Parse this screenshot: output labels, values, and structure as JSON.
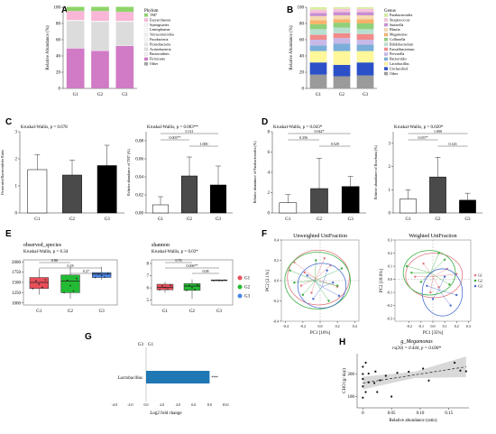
{
  "panel_letters": [
    "A",
    "B",
    "C",
    "D",
    "E",
    "F",
    "G",
    "H"
  ],
  "colors": {
    "groups": {
      "G1": "#e07a80",
      "G2": "#3cb043",
      "G3": "#4a6fd1"
    },
    "boxes": {
      "G1": "#e8505a",
      "G2": "#22bb33",
      "G3": "#4a86e8"
    }
  },
  "chart_data": [
    {
      "id": "A",
      "type": "bar",
      "stacked": true,
      "ylabel": "Relative Abundance (%)",
      "ylim": [
        0,
        100
      ],
      "yticks": [
        "0",
        "20",
        "40",
        "60",
        "80",
        "100"
      ],
      "categories": [
        "G1",
        "G2",
        "G3"
      ],
      "legend_title": "Phylum",
      "series": [
        {
          "name": "Other",
          "color": "#a0a0a0",
          "values": [
            0.3,
            0.3,
            0.3
          ]
        },
        {
          "name": "Firmicutes",
          "color": "#d17ac6",
          "values": [
            49,
            46,
            52
          ]
        },
        {
          "name": "Bacteroidetes",
          "color": "#f1f1f1",
          "values": [
            0.5,
            0.5,
            0.5
          ]
        },
        {
          "name": "Actinobacteria",
          "color": "#dcdcdc",
          "values": [
            33,
            35,
            29
          ]
        },
        {
          "name": "Proteobacteria",
          "color": "#e8e8e8",
          "values": [
            0.5,
            0.5,
            0.5
          ]
        },
        {
          "name": "Fusobacteria",
          "color": "#f5f5f5",
          "values": [
            0.3,
            0.3,
            0.3
          ]
        },
        {
          "name": "Verrucomicrobia",
          "color": "#f0f0f0",
          "values": [
            0.3,
            0.3,
            0.3
          ]
        },
        {
          "name": "Lentisphaerae",
          "color": "#fbfbfb",
          "values": [
            0.2,
            0.2,
            0.2
          ]
        },
        {
          "name": "Synergistetes",
          "color": "#f3f3f3",
          "values": [
            0.2,
            0.2,
            0.2
          ]
        },
        {
          "name": "Euryarchaeota",
          "color": "#f9b6d6",
          "values": [
            11,
            12,
            11
          ]
        },
        {
          "name": "TM7",
          "color": "#8ed46a",
          "values": [
            5.2,
            5.2,
            6.2
          ]
        }
      ]
    },
    {
      "id": "B",
      "type": "bar",
      "stacked": true,
      "ylabel": "Relative Abundance (%)",
      "ylim": [
        0,
        100
      ],
      "yticks": [
        "0",
        "20",
        "40",
        "60",
        "80",
        "100"
      ],
      "categories": [
        "G1",
        "G2",
        "G3"
      ],
      "legend_title": "Genus",
      "series": [
        {
          "name": "Other",
          "color": "#9a9a9a",
          "values": [
            17,
            15,
            16
          ]
        },
        {
          "name": "Unclassified",
          "color": "#2b50c8",
          "values": [
            15,
            14,
            16
          ]
        },
        {
          "name": "Lactobacillus",
          "color": "#fff79a",
          "values": [
            14,
            17,
            14
          ]
        },
        {
          "name": "Bacteroides",
          "color": "#7aaed8",
          "values": [
            7,
            9,
            8
          ]
        },
        {
          "name": "Prevotella",
          "color": "#c8b8e8",
          "values": [
            7,
            7,
            6
          ]
        },
        {
          "name": "Faecalibacterium",
          "color": "#f28a8a",
          "values": [
            6,
            6,
            7
          ]
        },
        {
          "name": "Bifidobacterium",
          "color": "#b8e0d0",
          "values": [
            7,
            7,
            6
          ]
        },
        {
          "name": "Collinsella",
          "color": "#8fd07a",
          "values": [
            6,
            6,
            7
          ]
        },
        {
          "name": "Megamonas",
          "color": "#f7b26a",
          "values": [
            5,
            4,
            5
          ]
        },
        {
          "name": "Blautia",
          "color": "#f7d9b0",
          "values": [
            5,
            5,
            5
          ]
        },
        {
          "name": "Sutterella",
          "color": "#c68fd0",
          "values": [
            4,
            4,
            4
          ]
        },
        {
          "name": "Streptococcus",
          "color": "#f8c0dc",
          "values": [
            4,
            4,
            4
          ]
        },
        {
          "name": "Parabacteroides",
          "color": "#d6ef9e",
          "values": [
            3,
            2,
            2
          ]
        }
      ]
    },
    {
      "id": "C1",
      "type": "bar",
      "stat": "Kruskal-Wallis, p = 0.678",
      "ylabel": "Firmicutes/Bacteroidetes Ratio",
      "ylim": [
        0,
        3
      ],
      "yticks": [
        "0",
        "1",
        "2",
        "3"
      ],
      "categories": [
        "G1",
        "G2",
        "G3"
      ],
      "values": [
        1.6,
        1.4,
        1.75
      ],
      "errors": [
        0.55,
        0.55,
        0.75
      ],
      "colors": [
        "#ffffff",
        "#4a4a4a",
        "#000000"
      ]
    },
    {
      "id": "C2",
      "type": "bar",
      "stat": "Kruskal-Wallis, p = 0.003**",
      "ylabel": "Relative abundance of TM7 (%)",
      "ylim": [
        0,
        0.09
      ],
      "yticks": [
        "0.00",
        "0.02",
        "0.04",
        "0.06",
        "0.08"
      ],
      "categories": [
        "G1",
        "G2",
        "G3"
      ],
      "values": [
        0.009,
        0.041,
        0.031
      ],
      "errors": [
        0.009,
        0.021,
        0.021
      ],
      "colors": [
        "#ffffff",
        "#4a4a4a",
        "#000000"
      ],
      "comparisons": [
        {
          "a": 0,
          "b": 1,
          "label": "0.003**"
        },
        {
          "a": 0,
          "b": 2,
          "label": "0.121"
        },
        {
          "a": 1,
          "b": 2,
          "label": "1.000"
        }
      ]
    },
    {
      "id": "D1",
      "type": "bar",
      "stat": "Kruskal-Wallis, p = 0.043*",
      "ylabel": "Relative abundance of Parabacteroides (%)",
      "ylim": [
        0,
        8
      ],
      "yticks": [
        "0",
        "2",
        "4",
        "6",
        "8"
      ],
      "categories": [
        "G1",
        "G2",
        "G3"
      ],
      "values": [
        1.0,
        2.4,
        2.6
      ],
      "errors": [
        0.8,
        3.0,
        1.0
      ],
      "colors": [
        "#ffffff",
        "#4a4a4a",
        "#000000"
      ],
      "comparisons": [
        {
          "a": 0,
          "b": 1,
          "label": "0.356"
        },
        {
          "a": 0,
          "b": 2,
          "label": "0.042*"
        },
        {
          "a": 1,
          "b": 2,
          "label": "0.529"
        }
      ]
    },
    {
      "id": "D2",
      "type": "bar",
      "stat": "Kruskal-Wallis, p = 0.020*",
      "ylabel": "Relative abundance of Roseburia (%)",
      "ylim": [
        0,
        3.5
      ],
      "yticks": [
        "0",
        "1",
        "2",
        "3"
      ],
      "categories": [
        "G1",
        "G2",
        "G3"
      ],
      "values": [
        0.6,
        1.55,
        0.55
      ],
      "errors": [
        0.4,
        0.85,
        0.3
      ],
      "colors": [
        "#ffffff",
        "#4a4a4a",
        "#000000"
      ],
      "comparisons": [
        {
          "a": 0,
          "b": 1,
          "label": "0.037*"
        },
        {
          "a": 0,
          "b": 2,
          "label": "1.000"
        },
        {
          "a": 1,
          "b": 2,
          "label": "0.143"
        }
      ]
    },
    {
      "id": "E1",
      "type": "box",
      "title": "observed_species",
      "stat": "Kruskal-Wallis, p = 0.34",
      "ylim": [
        950,
        2050
      ],
      "yticks": [
        "1000",
        "1250",
        "1500",
        "1750",
        "2000"
      ],
      "categories": [
        "G1",
        "G2",
        "G3"
      ],
      "boxes": [
        {
          "min": 1200,
          "q1": 1350,
          "median": 1500,
          "q3": 1620,
          "max": 1830
        },
        {
          "min": 1100,
          "q1": 1250,
          "median": 1530,
          "q3": 1680,
          "max": 1880
        },
        {
          "min": 1560,
          "q1": 1620,
          "median": 1700,
          "q3": 1740,
          "max": 1880
        }
      ],
      "comparisons": [
        {
          "a": 0,
          "b": 1,
          "label": "0.80"
        },
        {
          "a": 0,
          "b": 2,
          "label": "0.18"
        },
        {
          "a": 1,
          "b": 2,
          "label": "0.27"
        }
      ]
    },
    {
      "id": "E2",
      "type": "box",
      "title": "shannon",
      "stat": "Kruskal-Wallis, p = 0.03*",
      "ylim": [
        4.6,
        8.3
      ],
      "yticks": [
        "5",
        "6",
        "7",
        "8"
      ],
      "categories": [
        "G1",
        "G2",
        "G3"
      ],
      "boxes": [
        {
          "min": 5.6,
          "q1": 5.85,
          "median": 6.05,
          "q3": 6.3,
          "max": 6.5
        },
        {
          "min": 5.1,
          "q1": 5.8,
          "median": 6.15,
          "q3": 6.35,
          "max": 6.7
        },
        {
          "min": 6.5,
          "q1": 6.6,
          "median": 6.62,
          "q3": 6.65,
          "max": 6.72
        }
      ],
      "comparisons": [
        {
          "a": 0,
          "b": 1,
          "label": "0.76"
        },
        {
          "a": 0,
          "b": 2,
          "label": "0.006**"
        },
        {
          "a": 1,
          "b": 2,
          "label": "0.08"
        }
      ],
      "legend": [
        "G1",
        "G2",
        "G3"
      ]
    },
    {
      "id": "F1",
      "type": "scatter",
      "subtype": "pcoa",
      "title": "Unweighted UniFraction",
      "xlabel": "PC1 [16%]",
      "ylabel": "PC2 [2.1%]",
      "xlim": [
        -0.45,
        0.45
      ],
      "ylim": [
        -0.4,
        0.4
      ],
      "xticks": [
        "-0.4",
        "-0.2",
        "0.0",
        "0.2",
        "0.4"
      ],
      "yticks": [
        "-0.4",
        "-0.2",
        "0.0",
        "0.2",
        "0.4"
      ],
      "groups": [
        {
          "name": "G1",
          "centroid": [
            -0.05,
            0.02
          ],
          "points": [
            [
              -0.3,
              0.18
            ],
            [
              -0.18,
              0.08
            ],
            [
              0.12,
              0.15
            ],
            [
              0.2,
              -0.06
            ],
            [
              -0.1,
              -0.12
            ],
            [
              0.05,
              0.22
            ],
            [
              -0.22,
              -0.05
            ]
          ],
          "ellipse": {
            "cx": -0.02,
            "cy": 0.03,
            "rx": 0.36,
            "ry": 0.27
          }
        },
        {
          "name": "G2",
          "centroid": [
            -0.06,
            0.0
          ],
          "points": [
            [
              -0.35,
              0.1
            ],
            [
              0.25,
              0.12
            ],
            [
              -0.2,
              -0.14
            ],
            [
              0.1,
              -0.2
            ],
            [
              -0.05,
              0.2
            ],
            [
              0.2,
              -0.05
            ],
            [
              -0.3,
              -0.02
            ]
          ],
          "ellipse": {
            "cx": -0.03,
            "cy": 0.0,
            "rx": 0.38,
            "ry": 0.28
          }
        },
        {
          "name": "G3",
          "centroid": [
            0.02,
            -0.06
          ],
          "points": [
            [
              -0.15,
              0.05
            ],
            [
              0.22,
              -0.15
            ],
            [
              0.08,
              0.1
            ],
            [
              -0.08,
              -0.18
            ],
            [
              0.15,
              -0.02
            ]
          ],
          "ellipse": {
            "cx": 0.02,
            "cy": -0.05,
            "rx": 0.28,
            "ry": 0.22
          }
        }
      ]
    },
    {
      "id": "F2",
      "type": "scatter",
      "subtype": "pcoa",
      "title": "Weighted UniFraction",
      "xlabel": "PC1 [35%]",
      "ylabel": "PC2 [18.9%]",
      "xlim": [
        -0.32,
        0.32
      ],
      "ylim": [
        -0.32,
        0.3
      ],
      "xticks": [
        "-0.2",
        "-0.1",
        "0.0",
        "0.1",
        "0.2",
        "0.3"
      ],
      "yticks": [
        "-0.3",
        "-0.2",
        "-0.1",
        "0.0",
        "0.1",
        "0.2",
        "0.3"
      ],
      "legend": [
        "G1",
        "G2",
        "G3"
      ],
      "groups": [
        {
          "name": "G1",
          "centroid": [
            0.0,
            0.02
          ],
          "points": [
            [
              -0.15,
              0.02
            ],
            [
              0.12,
              0.08
            ],
            [
              0.05,
              -0.06
            ],
            [
              -0.08,
              0.12
            ],
            [
              0.2,
              0.04
            ],
            [
              -0.02,
              -0.1
            ]
          ],
          "ellipse": {
            "cx": 0.01,
            "cy": 0.03,
            "rx": 0.24,
            "ry": 0.17
          }
        },
        {
          "name": "G2",
          "centroid": [
            -0.02,
            0.05
          ],
          "points": [
            [
              -0.22,
              0.1
            ],
            [
              0.1,
              0.15
            ],
            [
              -0.1,
              -0.02
            ],
            [
              0.05,
              0.2
            ],
            [
              0.14,
              -0.04
            ],
            [
              -0.18,
              0.05
            ]
          ],
          "ellipse": {
            "cx": -0.03,
            "cy": 0.05,
            "rx": 0.22,
            "ry": 0.17
          }
        },
        {
          "name": "G3",
          "centroid": [
            0.05,
            -0.08
          ],
          "points": [
            [
              0.15,
              -0.2
            ],
            [
              -0.05,
              -0.05
            ],
            [
              0.1,
              0.02
            ],
            [
              0.2,
              -0.12
            ],
            [
              0.0,
              -0.15
            ]
          ],
          "ellipse": {
            "cx": 0.08,
            "cy": -0.1,
            "rx": 0.17,
            "ry": 0.18
          }
        }
      ]
    },
    {
      "id": "G",
      "type": "bar",
      "orientation": "horizontal",
      "xlabel": "Log2 fold change",
      "xlim": [
        -5,
        10
      ],
      "xticks": [
        "-4.0",
        "-2.0",
        "0.0",
        "2.0",
        "4.0",
        "6.0",
        "8.0",
        "10.0"
      ],
      "group_labels": [
        "G3",
        "G1"
      ],
      "categories": [
        "Lactobacillus"
      ],
      "values": [
        8.0
      ],
      "annotation": "***",
      "color": "#1f77b4"
    },
    {
      "id": "H",
      "type": "scatter",
      "title": "g_Megamonas",
      "stat": "rs(20) = 0.444, p = 0.038*",
      "xlabel": "Relative abundance (ratio)",
      "ylabel": "CHO (g/ day)",
      "xlim": [
        -0.01,
        0.185
      ],
      "ylim": [
        50,
        290
      ],
      "xticks": [
        "0",
        "0.05",
        "0.10",
        "0.15"
      ],
      "yticks": [
        "100",
        "200"
      ],
      "points": [
        [
          0.0,
          95
        ],
        [
          0.0,
          145
        ],
        [
          0.0,
          178
        ],
        [
          0.0,
          200
        ],
        [
          0.0,
          232
        ],
        [
          0.005,
          250
        ],
        [
          0.005,
          120
        ],
        [
          0.01,
          163
        ],
        [
          0.01,
          202
        ],
        [
          0.02,
          160
        ],
        [
          0.022,
          211
        ],
        [
          0.025,
          120
        ],
        [
          0.03,
          172
        ],
        [
          0.04,
          192
        ],
        [
          0.05,
          100
        ],
        [
          0.06,
          205
        ],
        [
          0.08,
          210
        ],
        [
          0.105,
          224
        ],
        [
          0.115,
          171
        ],
        [
          0.16,
          250
        ],
        [
          0.17,
          215
        ],
        [
          0.18,
          212
        ]
      ],
      "fit": {
        "slope": 400,
        "intercept": 160
      }
    }
  ]
}
